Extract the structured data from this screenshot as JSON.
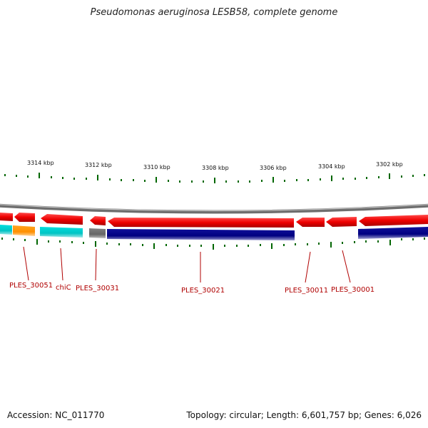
{
  "title": "Pseudomonas aeruginosa LESB58, complete genome",
  "footer": {
    "accession": "Accession: NC_011770",
    "summary": "Topology: circular; Length: 6,601,757 bp; Genes: 6,026"
  },
  "colors": {
    "forward_gene": "#ee0000",
    "reverse_gene": "#000080",
    "cyan_gene": "#00cccc",
    "orange_gene": "#ff9900",
    "gray_gene": "#707070",
    "backbone": "#8c8c8c",
    "tick": "#006600",
    "label": "#b00000"
  },
  "scale_labels": [
    "3314 kbp",
    "3312 kbp",
    "3310 kbp",
    "3308 kbp",
    "3306 kbp",
    "3304 kbp",
    "3302 kbp"
  ],
  "gene_labels": [
    "PLES_30051",
    "chiC",
    "PLES_30031",
    "PLES_30021",
    "PLES_30011",
    "PLES_30001"
  ]
}
